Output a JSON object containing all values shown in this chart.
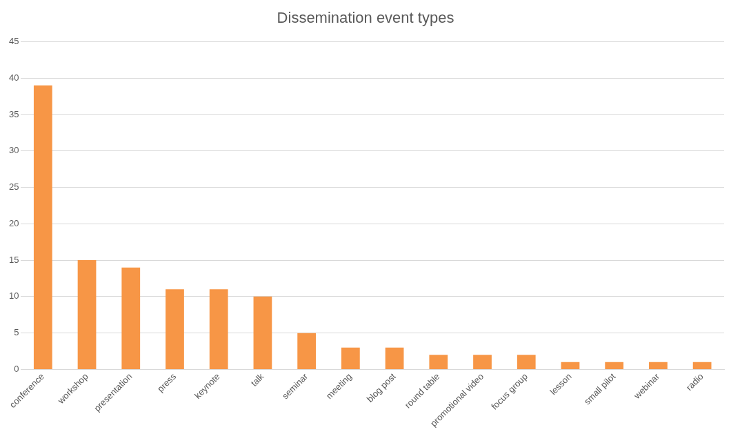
{
  "chart_data": {
    "type": "bar",
    "title": "Dissemination event types",
    "categories": [
      "conference",
      "workshop",
      "presentation",
      "press",
      "keynote",
      "talk",
      "seminar",
      "meeting",
      "blog post",
      "round table",
      "promotional video",
      "focus group",
      "lesson",
      "small pilot",
      "webinar",
      "radio"
    ],
    "values": [
      39,
      15,
      14,
      11,
      11,
      10,
      5,
      3,
      3,
      2,
      2,
      2,
      1,
      1,
      1,
      1
    ],
    "color": "#f79646",
    "ylim": [
      0,
      45
    ],
    "yticks": [
      0,
      5,
      10,
      15,
      20,
      25,
      30,
      35,
      40,
      45
    ],
    "grid": "y",
    "legend": false
  }
}
